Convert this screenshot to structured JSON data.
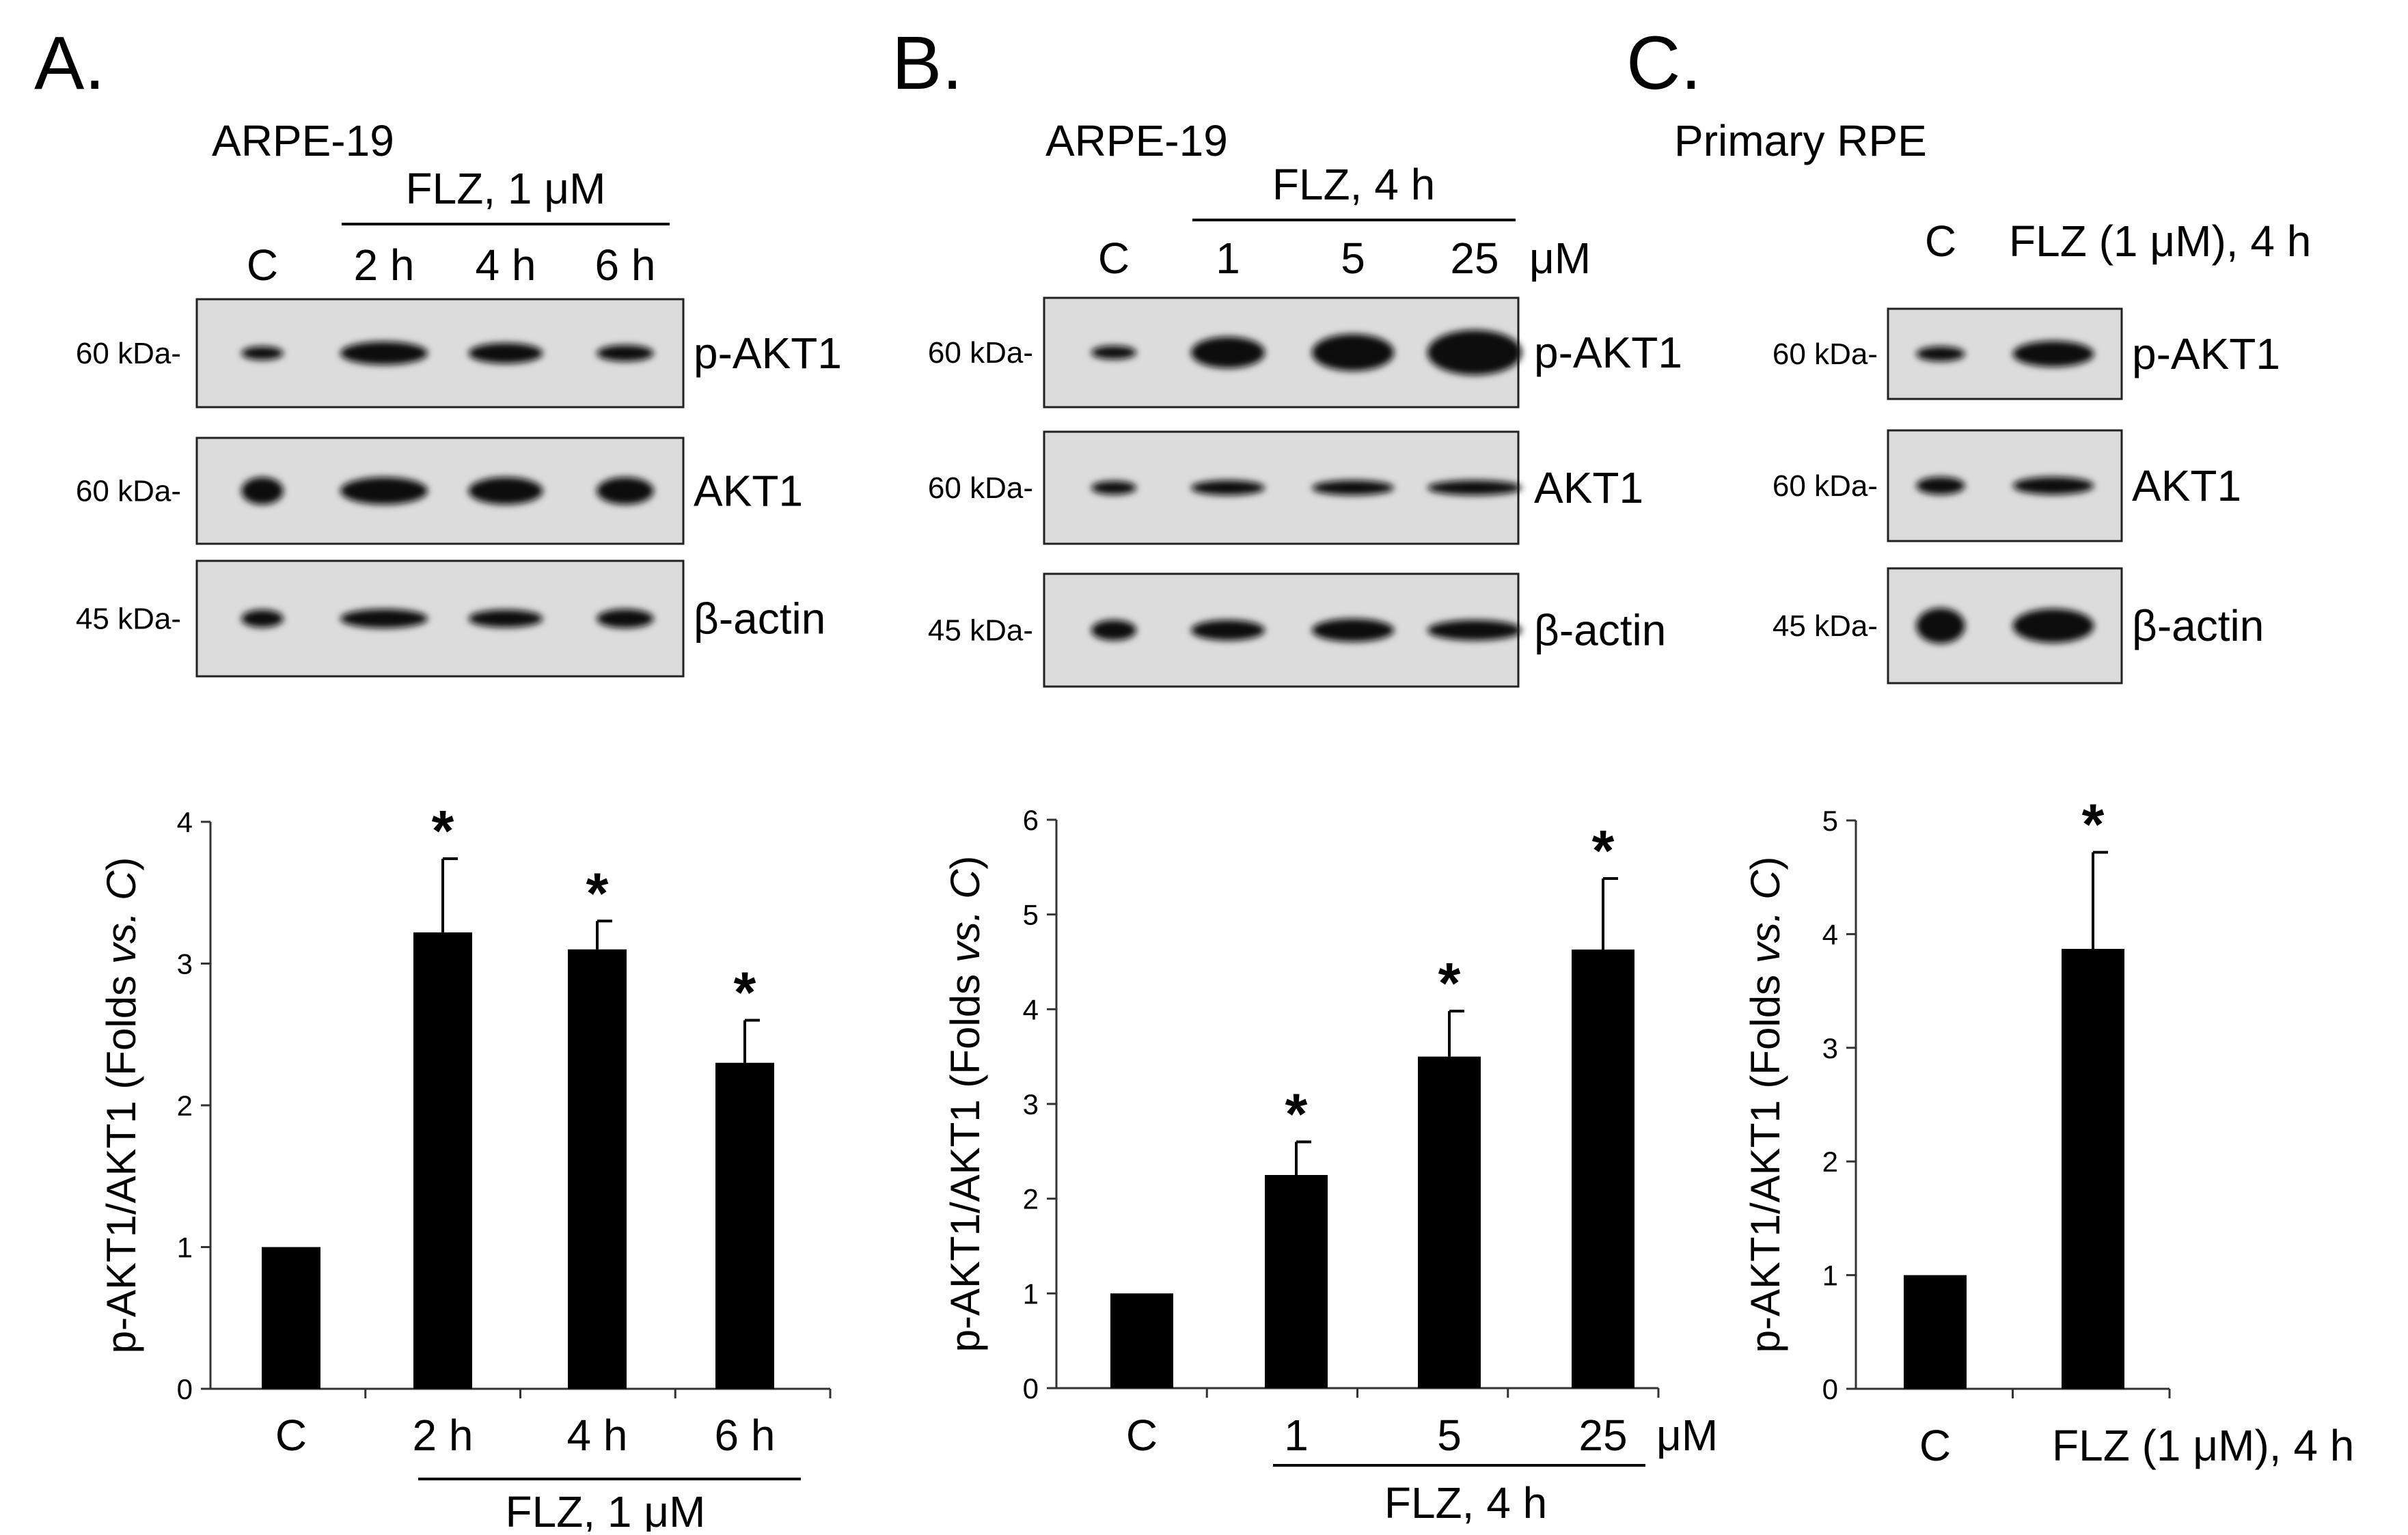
{
  "panels": [
    {
      "letter": "A.",
      "cell": "ARPE-19",
      "group_label": "FLZ, 1 μM",
      "lanes": [
        "C",
        "2 h",
        "4 h",
        "6 h"
      ],
      "unit": "",
      "blots": [
        {
          "kda": "60 kDa-",
          "protein": "p-AKT1"
        },
        {
          "kda": "60 kDa-",
          "protein": "AKT1"
        },
        {
          "kda": "45 kDa-",
          "protein": "β-actin"
        }
      ]
    },
    {
      "letter": "B.",
      "cell": "ARPE-19",
      "group_label": "FLZ, 4 h",
      "lanes": [
        "C",
        "1",
        "5",
        "25"
      ],
      "unit": "μM",
      "blots": [
        {
          "kda": "60 kDa-",
          "protein": "p-AKT1"
        },
        {
          "kda": "60 kDa-",
          "protein": "AKT1"
        },
        {
          "kda": "45 kDa-",
          "protein": "β-actin"
        }
      ]
    },
    {
      "letter": "C.",
      "cell": "Primary RPE",
      "group_label": "",
      "lanes": [
        "C",
        "FLZ (1 μM), 4 h"
      ],
      "unit": "",
      "blots": [
        {
          "kda": "60 kDa-",
          "protein": "p-AKT1"
        },
        {
          "kda": "60 kDa-",
          "protein": "AKT1"
        },
        {
          "kda": "45 kDa-",
          "protein": "β-actin"
        }
      ]
    }
  ],
  "chart_data": [
    {
      "type": "bar",
      "ylabel_main": "p-AKT1/AKT1 (Folds ",
      "ylabel_italic": "vs. C",
      "ylabel_end": ")",
      "categories": [
        "C",
        "2 h",
        "4 h",
        "6 h"
      ],
      "values": [
        1.0,
        3.22,
        3.1,
        2.3
      ],
      "errors": [
        0,
        0.52,
        0.2,
        0.3
      ],
      "significant": [
        false,
        true,
        true,
        true
      ],
      "sig_mark": "*",
      "ylim": [
        0,
        4
      ],
      "yticks": [
        "0",
        "1",
        "2",
        "3",
        "4"
      ],
      "group_label": "FLZ, 1 μM",
      "unit": "",
      "bar_color": "#000000"
    },
    {
      "type": "bar",
      "ylabel_main": "p-AKT1/AKT1 (Folds ",
      "ylabel_italic": "vs. C",
      "ylabel_end": ")",
      "categories": [
        "C",
        "1",
        "5",
        "25"
      ],
      "values": [
        1.0,
        2.25,
        3.5,
        4.63
      ],
      "errors": [
        0,
        0.35,
        0.48,
        0.75
      ],
      "significant": [
        false,
        true,
        true,
        true
      ],
      "sig_mark": "*",
      "ylim": [
        0,
        6
      ],
      "yticks": [
        "0",
        "1",
        "2",
        "3",
        "4",
        "5",
        "6"
      ],
      "group_label": "FLZ, 4 h",
      "unit": "μM",
      "bar_color": "#000000"
    },
    {
      "type": "bar",
      "ylabel_main": "p-AKT1/AKT1 (Folds ",
      "ylabel_italic": "vs. C",
      "ylabel_end": ")",
      "categories": [
        "C",
        "FLZ (1 μM), 4 h"
      ],
      "values": [
        1.0,
        3.87
      ],
      "errors": [
        0,
        0.85
      ],
      "significant": [
        false,
        true
      ],
      "sig_mark": "*",
      "ylim": [
        0,
        5
      ],
      "yticks": [
        "0",
        "1",
        "2",
        "3",
        "4",
        "5"
      ],
      "group_label": "",
      "unit": "",
      "bar_color": "#000000"
    }
  ]
}
